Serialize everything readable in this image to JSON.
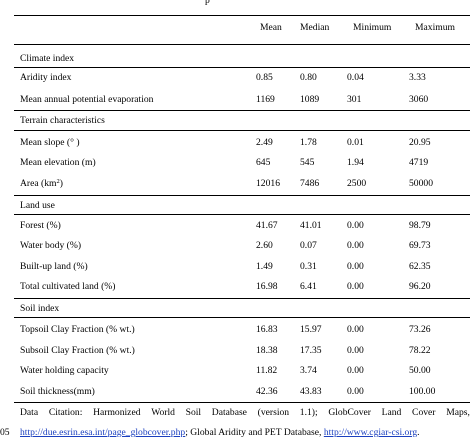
{
  "header_fragment": "p",
  "columns": [
    "Mean",
    "Median",
    "Minimum",
    "Maximum"
  ],
  "sections": [
    {
      "title": "Climate index",
      "rows": [
        {
          "label": "Aridity index",
          "mean": "0.85",
          "median": "0.80",
          "min": "0.04",
          "max": "3.33"
        },
        {
          "label": "Mean annual potential evaporation",
          "mean": "1169",
          "median": "1089",
          "min": "301",
          "max": "3060"
        }
      ]
    },
    {
      "title": "Terrain characteristics",
      "rows": [
        {
          "label": "Mean slope (° )",
          "mean": "2.49",
          "median": "1.78",
          "min": "0.01",
          "max": "20.95"
        },
        {
          "label": "Mean elevation (m)",
          "mean": "645",
          "median": "545",
          "min": "1.94",
          "max": "4719"
        },
        {
          "label": "Area (km",
          "label_sup": "2",
          "label_tail": ")",
          "mean": "12016",
          "median": "7486",
          "min": "2500",
          "max": "50000"
        }
      ]
    },
    {
      "title": "Land use",
      "rows": [
        {
          "label": "Forest (%)",
          "mean": "41.67",
          "median": "41.01",
          "min": "0.00",
          "max": "98.79"
        },
        {
          "label": "Water body (%)",
          "mean": "2.60",
          "median": "0.07",
          "min": "0.00",
          "max": "69.73"
        },
        {
          "label": "Built-up land (%)",
          "mean": "1.49",
          "median": "0.31",
          "min": "0.00",
          "max": "62.35"
        },
        {
          "label": "Total cultivated land (%)",
          "mean": "16.98",
          "median": "6.41",
          "min": "0.00",
          "max": "96.20"
        }
      ]
    },
    {
      "title": "Soil index",
      "rows": [
        {
          "label": "Topsoil Clay Fraction (% wt.)",
          "mean": "16.83",
          "median": "15.97",
          "min": "0.00",
          "max": "73.26"
        },
        {
          "label": "Subsoil Clay Fraction (% wt.)",
          "mean": "18.38",
          "median": "17.35",
          "min": "0.00",
          "max": "78.22"
        },
        {
          "label": "Water holding capacity",
          "mean": "11.82",
          "median": "3.74",
          "min": "0.00",
          "max": "50.00"
        },
        {
          "label": "Soil thickness(mm)",
          "mean": "42.36",
          "median": "43.83",
          "min": "0.00",
          "max": "100.00"
        }
      ]
    }
  ],
  "footnote": {
    "line1_words": [
      "Data",
      "Citation:",
      "Harmonized",
      "World",
      "Soil",
      "Database",
      "(version",
      "1.1);",
      "GlobCover",
      "Land",
      "Cover",
      "Maps,"
    ],
    "line_number": "05",
    "link1": "http://due.esrin.esa.int/page_globcover.php",
    "mid_text": "; Global Aridity and PET Database, ",
    "link2": "http://www.cgiar-csi.org",
    "end_text": "."
  }
}
